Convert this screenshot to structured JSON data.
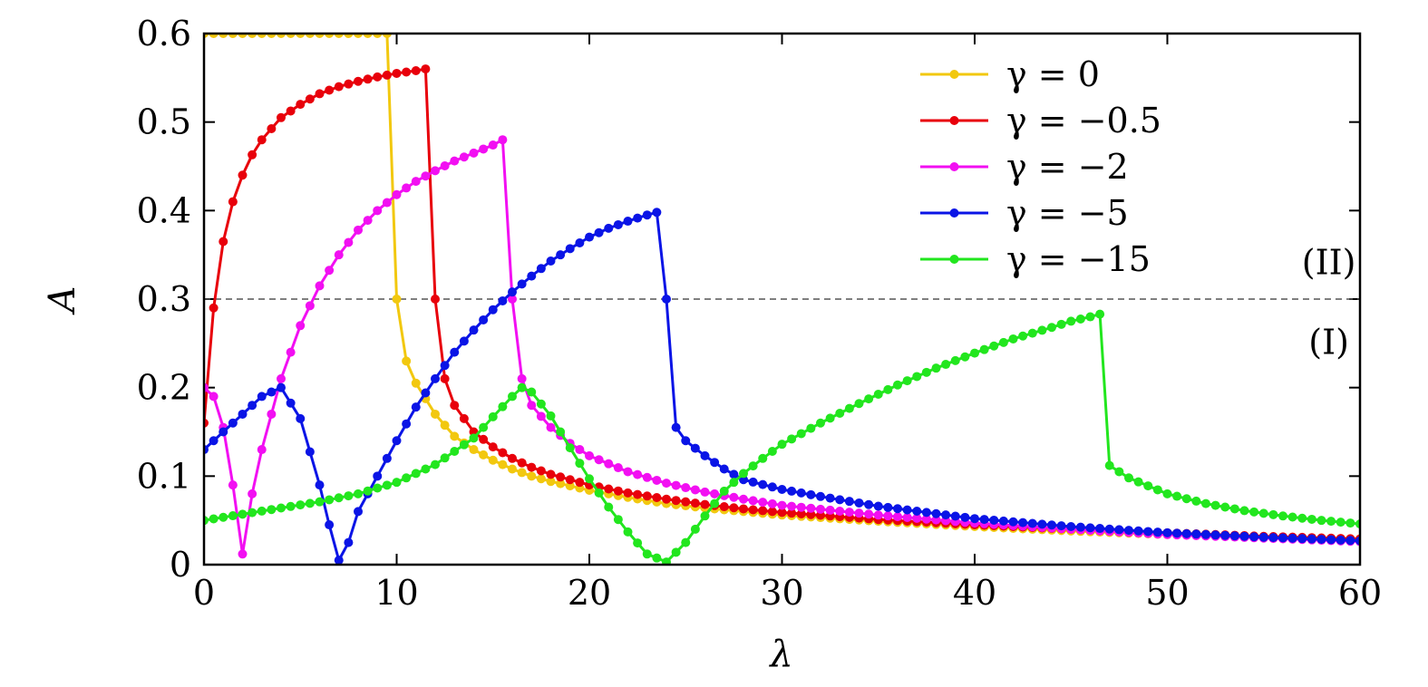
{
  "chart_data": {
    "type": "line",
    "title": "",
    "xlabel": "λ",
    "ylabel": "A",
    "xlim": [
      0,
      60
    ],
    "ylim": [
      0,
      0.6
    ],
    "xticks": [
      0,
      10,
      20,
      30,
      40,
      50,
      60
    ],
    "xtick_labels": [
      "0",
      "10",
      "20",
      "30",
      "40",
      "50",
      "60"
    ],
    "yticks": [
      0,
      0.1,
      0.2,
      0.3,
      0.4,
      0.5,
      0.6
    ],
    "ytick_labels": [
      "0",
      "0.1",
      "0.2",
      "0.3",
      "0.4",
      "0.5",
      "0.6"
    ],
    "grid": false,
    "legend_position": "top-right",
    "reference_line": {
      "y": 0.3,
      "style": "dashed",
      "color": "#555555"
    },
    "annotations": [
      {
        "text": "(II)",
        "x": 56.5,
        "y": 0.33
      },
      {
        "text": "(I)",
        "x": 56.5,
        "y": 0.24
      }
    ],
    "series": [
      {
        "name": "γ = 0",
        "color": "#f2c80f",
        "x": [
          0,
          1,
          2,
          3,
          4,
          5,
          6,
          7,
          8,
          9,
          9.5,
          10,
          10.5,
          11,
          12,
          13,
          14,
          15,
          16,
          17,
          18,
          20,
          22,
          24,
          26,
          28,
          30,
          35,
          40,
          45,
          50,
          55,
          60
        ],
        "y": [
          0.6,
          0.6,
          0.6,
          0.6,
          0.6,
          0.6,
          0.6,
          0.6,
          0.6,
          0.6,
          0.6,
          0.3,
          0.23,
          0.205,
          0.17,
          0.145,
          0.13,
          0.118,
          0.108,
          0.1,
          0.094,
          0.084,
          0.076,
          0.069,
          0.064,
          0.06,
          0.056,
          0.049,
          0.043,
          0.038,
          0.034,
          0.031,
          0.029
        ]
      },
      {
        "name": "γ = −0.5",
        "color": "#e8000b",
        "x": [
          0,
          0.5,
          1,
          1.5,
          2,
          2.5,
          3,
          4,
          5,
          6,
          7,
          8,
          9,
          10,
          11,
          11.5,
          12,
          12.5,
          13,
          14,
          15,
          16,
          17,
          18,
          20,
          22,
          24,
          26,
          28,
          30,
          35,
          40,
          45,
          50,
          55,
          60
        ],
        "y": [
          0.16,
          0.29,
          0.365,
          0.41,
          0.44,
          0.463,
          0.48,
          0.505,
          0.52,
          0.532,
          0.54,
          0.546,
          0.551,
          0.555,
          0.558,
          0.56,
          0.3,
          0.21,
          0.18,
          0.15,
          0.133,
          0.12,
          0.11,
          0.102,
          0.09,
          0.081,
          0.074,
          0.068,
          0.063,
          0.059,
          0.051,
          0.045,
          0.04,
          0.036,
          0.032,
          0.029
        ]
      },
      {
        "name": "γ = −2",
        "color": "#f20ff2",
        "x": [
          0,
          0.5,
          1,
          1.5,
          2,
          2.5,
          3,
          3.5,
          4,
          5,
          6,
          7,
          8,
          9,
          10,
          11,
          12,
          13,
          14,
          15,
          15.5,
          16,
          16.5,
          17,
          18,
          19,
          20,
          22,
          24,
          26,
          28,
          30,
          35,
          40,
          45,
          50,
          55,
          60
        ],
        "y": [
          0.2,
          0.19,
          0.155,
          0.09,
          0.012,
          0.08,
          0.13,
          0.17,
          0.21,
          0.27,
          0.315,
          0.35,
          0.378,
          0.4,
          0.418,
          0.433,
          0.445,
          0.456,
          0.465,
          0.474,
          0.48,
          0.3,
          0.21,
          0.18,
          0.155,
          0.137,
          0.123,
          0.105,
          0.092,
          0.082,
          0.074,
          0.067,
          0.056,
          0.047,
          0.04,
          0.034,
          0.03,
          0.026
        ]
      },
      {
        "name": "γ = −5",
        "color": "#0a14e6",
        "x": [
          0,
          1,
          2,
          3,
          4,
          5,
          6,
          6.5,
          7,
          7.5,
          8,
          9,
          10,
          11,
          12,
          13,
          14,
          15,
          16,
          17,
          18,
          19,
          20,
          21,
          22,
          23,
          23.5,
          24,
          24.5,
          25,
          26,
          27,
          28,
          30,
          32,
          35,
          40,
          45,
          50,
          55,
          60
        ],
        "y": [
          0.13,
          0.15,
          0.17,
          0.19,
          0.2,
          0.165,
          0.09,
          0.045,
          0.005,
          0.025,
          0.06,
          0.1,
          0.14,
          0.178,
          0.21,
          0.24,
          0.265,
          0.288,
          0.308,
          0.326,
          0.343,
          0.357,
          0.37,
          0.38,
          0.388,
          0.395,
          0.398,
          0.3,
          0.155,
          0.14,
          0.123,
          0.108,
          0.096,
          0.085,
          0.077,
          0.066,
          0.052,
          0.043,
          0.036,
          0.031,
          0.027
        ]
      },
      {
        "name": "γ = −15",
        "color": "#22e61e",
        "x": [
          0,
          2,
          4,
          6,
          8,
          10,
          12,
          14,
          15,
          16,
          16.5,
          17,
          18,
          19,
          20,
          21,
          22,
          23,
          24,
          25,
          26,
          27,
          28,
          29,
          30,
          32,
          34,
          36,
          38,
          40,
          42,
          44,
          45,
          46,
          46.5,
          47,
          48,
          50,
          52,
          54,
          56,
          58,
          60
        ],
        "y": [
          0.05,
          0.057,
          0.064,
          0.071,
          0.08,
          0.093,
          0.113,
          0.143,
          0.167,
          0.19,
          0.2,
          0.195,
          0.168,
          0.132,
          0.097,
          0.065,
          0.037,
          0.012,
          0.003,
          0.025,
          0.055,
          0.083,
          0.103,
          0.12,
          0.136,
          0.16,
          0.182,
          0.203,
          0.222,
          0.239,
          0.255,
          0.268,
          0.275,
          0.28,
          0.283,
          0.112,
          0.098,
          0.08,
          0.069,
          0.061,
          0.055,
          0.05,
          0.046
        ]
      }
    ]
  }
}
